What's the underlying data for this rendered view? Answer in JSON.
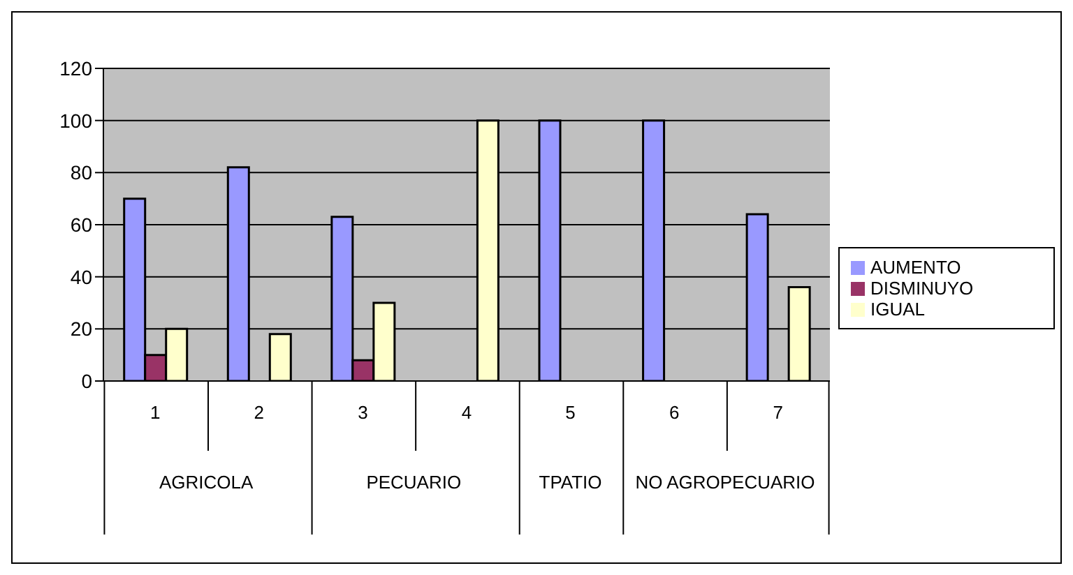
{
  "chart_data": {
    "type": "bar",
    "categories": [
      "1",
      "2",
      "3",
      "4",
      "5",
      "6",
      "7"
    ],
    "series": [
      {
        "name": "AUMENTO",
        "color": "#9999ff",
        "values": [
          70,
          82,
          63,
          null,
          100,
          100,
          64
        ]
      },
      {
        "name": "DISMINUYO",
        "color": "#993366",
        "values": [
          10,
          null,
          8,
          null,
          null,
          null,
          null
        ]
      },
      {
        "name": "IGUAL",
        "color": "#ffffcc",
        "values": [
          20,
          18,
          30,
          100,
          null,
          null,
          36
        ]
      }
    ],
    "ylim": [
      0,
      120
    ],
    "yticks": [
      0,
      20,
      40,
      60,
      80,
      100,
      120
    ],
    "grid": "y",
    "legend": "right",
    "annotations": [
      "AGRICOLA",
      "PECUARIO",
      "TPATIO",
      "NO AGROPECUARIO"
    ]
  }
}
